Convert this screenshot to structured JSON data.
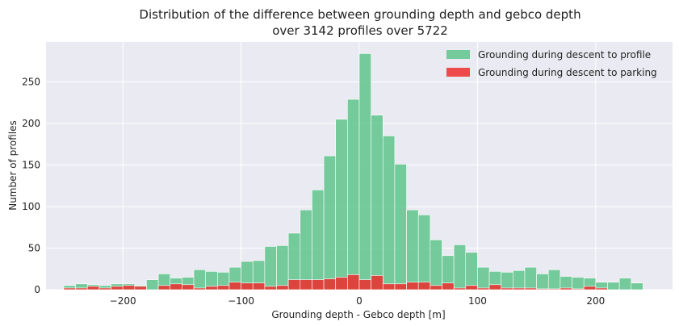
{
  "chart_data": {
    "type": "bar",
    "title": "Distribution of the difference between grounding depth and gebco depth",
    "subtitle": "over 3142 profiles over 5722",
    "xlabel": "Grounding depth - Gebco depth [m]",
    "ylabel": "Number of profiles",
    "xlim": [
      -265,
      265
    ],
    "ylim": [
      0,
      298
    ],
    "x_ticks": [
      -200,
      -100,
      0,
      100,
      200
    ],
    "x_tick_labels": [
      "−200",
      "−100",
      "0",
      "100",
      "200"
    ],
    "y_ticks": [
      0,
      50,
      100,
      150,
      200,
      250
    ],
    "y_tick_labels": [
      "0",
      "50",
      "100",
      "150",
      "200",
      "250"
    ],
    "bin_width": 10,
    "grid": true,
    "legend_position": "top-right",
    "series": [
      {
        "name": "Grounding during descent to profile",
        "color": "#5fc48c",
        "bins": [
          {
            "x": -245,
            "y": 5
          },
          {
            "x": -235,
            "y": 7
          },
          {
            "x": -225,
            "y": 6
          },
          {
            "x": -215,
            "y": 5
          },
          {
            "x": -205,
            "y": 7
          },
          {
            "x": -195,
            "y": 7
          },
          {
            "x": -185,
            "y": 5
          },
          {
            "x": -175,
            "y": 12
          },
          {
            "x": -165,
            "y": 19
          },
          {
            "x": -155,
            "y": 14
          },
          {
            "x": -145,
            "y": 15
          },
          {
            "x": -135,
            "y": 24
          },
          {
            "x": -125,
            "y": 22
          },
          {
            "x": -115,
            "y": 21
          },
          {
            "x": -105,
            "y": 27
          },
          {
            "x": -95,
            "y": 34
          },
          {
            "x": -85,
            "y": 35
          },
          {
            "x": -75,
            "y": 52
          },
          {
            "x": -65,
            "y": 53
          },
          {
            "x": -55,
            "y": 68
          },
          {
            "x": -45,
            "y": 96
          },
          {
            "x": -35,
            "y": 120
          },
          {
            "x": -25,
            "y": 161
          },
          {
            "x": -15,
            "y": 205
          },
          {
            "x": -5,
            "y": 229
          },
          {
            "x": 5,
            "y": 284
          },
          {
            "x": 15,
            "y": 210
          },
          {
            "x": 25,
            "y": 185
          },
          {
            "x": 35,
            "y": 151
          },
          {
            "x": 45,
            "y": 96
          },
          {
            "x": 55,
            "y": 90
          },
          {
            "x": 65,
            "y": 60
          },
          {
            "x": 75,
            "y": 41
          },
          {
            "x": 85,
            "y": 54
          },
          {
            "x": 95,
            "y": 45
          },
          {
            "x": 105,
            "y": 27
          },
          {
            "x": 115,
            "y": 22
          },
          {
            "x": 125,
            "y": 21
          },
          {
            "x": 135,
            "y": 23
          },
          {
            "x": 145,
            "y": 27
          },
          {
            "x": 155,
            "y": 19
          },
          {
            "x": 165,
            "y": 24
          },
          {
            "x": 175,
            "y": 16
          },
          {
            "x": 185,
            "y": 15
          },
          {
            "x": 195,
            "y": 14
          },
          {
            "x": 205,
            "y": 9
          },
          {
            "x": 215,
            "y": 9
          },
          {
            "x": 225,
            "y": 14
          },
          {
            "x": 235,
            "y": 8
          }
        ]
      },
      {
        "name": "Grounding during descent to parking",
        "color": "#ee2e2e",
        "bins": [
          {
            "x": -245,
            "y": 2
          },
          {
            "x": -235,
            "y": 2
          },
          {
            "x": -225,
            "y": 4
          },
          {
            "x": -215,
            "y": 2
          },
          {
            "x": -205,
            "y": 4
          },
          {
            "x": -195,
            "y": 5
          },
          {
            "x": -185,
            "y": 4
          },
          {
            "x": -175,
            "y": 0
          },
          {
            "x": -165,
            "y": 5
          },
          {
            "x": -155,
            "y": 7
          },
          {
            "x": -145,
            "y": 6
          },
          {
            "x": -135,
            "y": 2
          },
          {
            "x": -125,
            "y": 4
          },
          {
            "x": -115,
            "y": 5
          },
          {
            "x": -105,
            "y": 9
          },
          {
            "x": -95,
            "y": 8
          },
          {
            "x": -85,
            "y": 8
          },
          {
            "x": -75,
            "y": 4
          },
          {
            "x": -65,
            "y": 5
          },
          {
            "x": -55,
            "y": 12
          },
          {
            "x": -45,
            "y": 12
          },
          {
            "x": -35,
            "y": 12
          },
          {
            "x": -25,
            "y": 13
          },
          {
            "x": -15,
            "y": 15
          },
          {
            "x": -5,
            "y": 18
          },
          {
            "x": 5,
            "y": 12
          },
          {
            "x": 15,
            "y": 17
          },
          {
            "x": 25,
            "y": 7
          },
          {
            "x": 35,
            "y": 7
          },
          {
            "x": 45,
            "y": 9
          },
          {
            "x": 55,
            "y": 9
          },
          {
            "x": 65,
            "y": 5
          },
          {
            "x": 75,
            "y": 8
          },
          {
            "x": 85,
            "y": 2
          },
          {
            "x": 95,
            "y": 5
          },
          {
            "x": 105,
            "y": 2
          },
          {
            "x": 115,
            "y": 6
          },
          {
            "x": 125,
            "y": 2
          },
          {
            "x": 135,
            "y": 2
          },
          {
            "x": 145,
            "y": 2
          },
          {
            "x": 155,
            "y": 1
          },
          {
            "x": 165,
            "y": 1
          },
          {
            "x": 175,
            "y": 2
          },
          {
            "x": 185,
            "y": 1
          },
          {
            "x": 195,
            "y": 4
          },
          {
            "x": 205,
            "y": 2
          },
          {
            "x": 215,
            "y": 0
          },
          {
            "x": 225,
            "y": 0
          },
          {
            "x": 235,
            "y": 0
          }
        ]
      }
    ]
  }
}
